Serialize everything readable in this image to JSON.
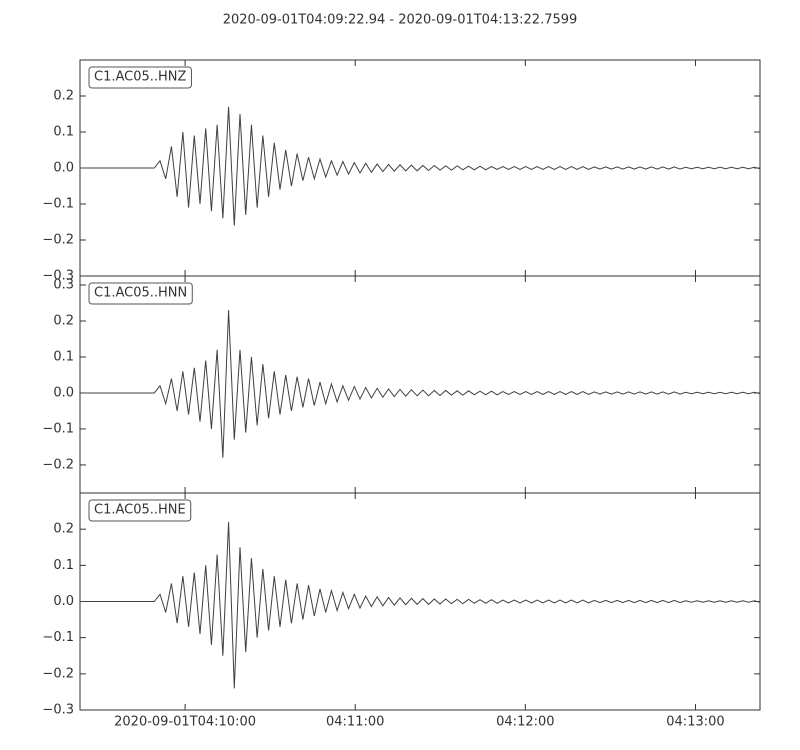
{
  "chart_data": [
    {
      "type": "line",
      "title": "2020-09-01T04:09:22.94  -  2020-09-01T04:13:22.7599",
      "ylim": [
        -0.3,
        0.3
      ],
      "yticks": [
        {
          "value": -0.3,
          "label": "−0.3"
        },
        {
          "value": -0.2,
          "label": "−0.2"
        },
        {
          "value": -0.1,
          "label": "−0.1"
        },
        {
          "value": 0.0,
          "label": "0.0"
        },
        0.1,
        0.2
      ],
      "series": [
        {
          "name": "C1.AC05..HNZ",
          "color": "#404040",
          "values": [
            0,
            0,
            0,
            0,
            0,
            0,
            0,
            0,
            0,
            0,
            0,
            0,
            0,
            0,
            0.02,
            -0.03,
            0.06,
            -0.08,
            0.1,
            -0.11,
            0.09,
            -0.1,
            0.11,
            -0.12,
            0.12,
            -0.14,
            0.17,
            -0.16,
            0.15,
            -0.13,
            0.12,
            -0.11,
            0.09,
            -0.08,
            0.07,
            -0.06,
            0.05,
            -0.05,
            0.04,
            -0.035,
            0.03,
            -0.03,
            0.025,
            -0.025,
            0.02,
            -0.02,
            0.018,
            -0.017,
            0.015,
            -0.014,
            0.013,
            -0.012,
            0.011,
            -0.01,
            0.01,
            -0.009,
            0.009,
            -0.008,
            0.008,
            -0.008,
            0.007,
            -0.007,
            0.007,
            -0.006,
            0.006,
            -0.006,
            0.006,
            -0.005,
            0.005,
            -0.005,
            0.005,
            -0.005,
            0.004,
            -0.004,
            0.004,
            -0.004,
            0.004,
            -0.004,
            0.004,
            -0.004,
            0.004,
            -0.004,
            0.004,
            -0.004,
            0.004,
            -0.004,
            0.004,
            -0.004,
            0.004,
            -0.004,
            0.003,
            -0.003,
            0.003,
            -0.003,
            0.003,
            -0.003,
            0.003,
            -0.003,
            0.003,
            -0.003,
            0.003,
            -0.003,
            0.003,
            -0.003,
            0.003,
            -0.003,
            0.002,
            -0.002,
            0.002,
            -0.002,
            0.002,
            -0.002,
            0.002,
            -0.002,
            0.002,
            -0.002,
            0.002,
            -0.002,
            0.002,
            -0.002
          ]
        }
      ]
    },
    {
      "type": "line",
      "ylim": [
        -0.278,
        0.325
      ],
      "yticks": [
        {
          "value": -0.2,
          "label": "−0.2"
        },
        {
          "value": -0.1,
          "label": "−0.1"
        },
        {
          "value": 0.0,
          "label": "0.0"
        },
        0.1,
        0.2,
        0.3
      ],
      "series": [
        {
          "name": "C1.AC05..HNN",
          "color": "#404040",
          "values": [
            0,
            0,
            0,
            0,
            0,
            0,
            0,
            0,
            0,
            0,
            0,
            0,
            0,
            0,
            0.02,
            -0.03,
            0.04,
            -0.05,
            0.06,
            -0.06,
            0.07,
            -0.08,
            0.09,
            -0.1,
            0.12,
            -0.18,
            0.23,
            -0.13,
            0.12,
            -0.11,
            0.1,
            -0.09,
            0.08,
            -0.07,
            0.06,
            -0.06,
            0.05,
            -0.05,
            0.045,
            -0.04,
            0.04,
            -0.035,
            0.03,
            -0.03,
            0.025,
            -0.025,
            0.02,
            -0.02,
            0.018,
            -0.017,
            0.015,
            -0.014,
            0.013,
            -0.012,
            0.011,
            -0.01,
            0.01,
            -0.009,
            0.009,
            -0.008,
            0.008,
            -0.008,
            0.007,
            -0.007,
            0.007,
            -0.006,
            0.006,
            -0.006,
            0.006,
            -0.005,
            0.005,
            -0.005,
            0.005,
            -0.005,
            0.004,
            -0.004,
            0.004,
            -0.004,
            0.004,
            -0.004,
            0.004,
            -0.004,
            0.004,
            -0.004,
            0.004,
            -0.004,
            0.004,
            -0.004,
            0.004,
            -0.004,
            0.003,
            -0.003,
            0.003,
            -0.003,
            0.003,
            -0.003,
            0.003,
            -0.003,
            0.003,
            -0.003,
            0.003,
            -0.003,
            0.003,
            -0.003,
            0.003,
            -0.003,
            0.002,
            -0.002,
            0.002,
            -0.002,
            0.002,
            -0.002,
            0.002,
            -0.002,
            0.002,
            -0.002,
            0.002,
            -0.002,
            0.002,
            -0.002
          ]
        }
      ]
    },
    {
      "type": "line",
      "xlim": [
        "2020-09-01T04:09:22.94",
        "2020-09-01T04:13:22.7599"
      ],
      "xticks": [
        {
          "value": "2020-09-01T04:10:00",
          "label": "2020-09-01T04:10:00"
        },
        {
          "value": "2020-09-01T04:11:00",
          "label": "04:11:00"
        },
        {
          "value": "2020-09-01T04:12:00",
          "label": "04:12:00"
        },
        {
          "value": "2020-09-01T04:13:00",
          "label": "04:13:00"
        }
      ],
      "ylim": [
        -0.3,
        0.3
      ],
      "yticks": [
        {
          "value": -0.3,
          "label": "−0.3"
        },
        {
          "value": -0.2,
          "label": "−0.2"
        },
        {
          "value": -0.1,
          "label": "−0.1"
        },
        {
          "value": 0.0,
          "label": "0.0"
        },
        0.1,
        0.2
      ],
      "series": [
        {
          "name": "C1.AC05..HNE",
          "color": "#404040",
          "values": [
            0,
            0,
            0,
            0,
            0,
            0,
            0,
            0,
            0,
            0,
            0,
            0,
            0,
            0,
            0.02,
            -0.03,
            0.05,
            -0.06,
            0.07,
            -0.07,
            0.08,
            -0.09,
            0.1,
            -0.12,
            0.13,
            -0.15,
            0.22,
            -0.24,
            0.15,
            -0.14,
            0.12,
            -0.1,
            0.09,
            -0.08,
            0.07,
            -0.07,
            0.06,
            -0.06,
            0.05,
            -0.05,
            0.045,
            -0.04,
            0.035,
            -0.03,
            0.03,
            -0.025,
            0.025,
            -0.02,
            0.02,
            -0.018,
            0.015,
            -0.014,
            0.013,
            -0.012,
            0.011,
            -0.01,
            0.01,
            -0.009,
            0.009,
            -0.008,
            0.008,
            -0.008,
            0.007,
            -0.007,
            0.007,
            -0.006,
            0.006,
            -0.006,
            0.006,
            -0.005,
            0.005,
            -0.005,
            0.005,
            -0.005,
            0.004,
            -0.004,
            0.004,
            -0.004,
            0.004,
            -0.004,
            0.004,
            -0.004,
            0.004,
            -0.004,
            0.004,
            -0.004,
            0.004,
            -0.004,
            0.004,
            -0.004,
            0.003,
            -0.003,
            0.003,
            -0.003,
            0.003,
            -0.003,
            0.003,
            -0.003,
            0.003,
            -0.003,
            0.003,
            -0.003,
            0.003,
            -0.003,
            0.003,
            -0.003,
            0.002,
            -0.002,
            0.002,
            -0.002,
            0.002,
            -0.002,
            0.002,
            -0.002,
            0.002,
            -0.002,
            0.002,
            -0.002,
            0.002,
            -0.002
          ]
        }
      ]
    }
  ]
}
